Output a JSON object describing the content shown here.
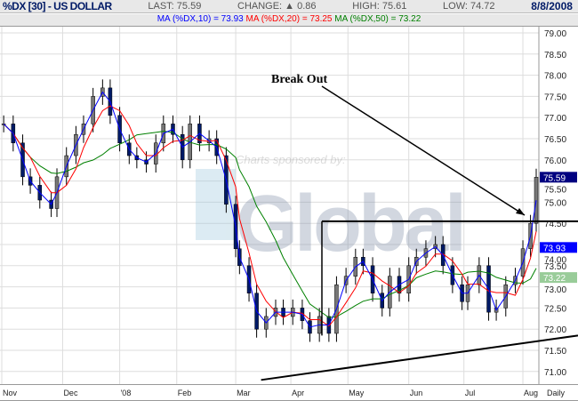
{
  "header": {
    "title": "%DX [30] - US DOLLAR",
    "last": "LAST: 75.59",
    "change": "CHANGE: ▲ 0.86",
    "high": "HIGH: 75.61",
    "low": "LOW: 74.72",
    "date": "8/8/2008",
    "ma10": "MA (%DX,10) = 73.93",
    "ma20": "MA (%DX,20) = 73.25",
    "ma50": "MA (%DX,50) = 73.22"
  },
  "colors": {
    "ma10": "#0000ff",
    "ma20": "#ff0000",
    "ma50": "#008000",
    "last_tag": "#000080",
    "ma10_tag": "#0000ff",
    "ma50_tag": "#99cc99"
  },
  "watermark": {
    "text": "Charts sponsored by:",
    "logo": "FXGlobal"
  },
  "annotation": {
    "text": "Break Out"
  },
  "chart_data": {
    "type": "line",
    "title": "%DX [30] - US DOLLAR",
    "ylim": [
      70.75,
      79.15
    ],
    "yticks": [
      "71.00",
      "71.50",
      "72.00",
      "72.50",
      "73.00",
      "73.50",
      "74.00",
      "74.50",
      "75.00",
      "75.50",
      "76.00",
      "76.50",
      "77.00",
      "77.50",
      "78.00",
      "78.50",
      "79.00"
    ],
    "xticks": [
      {
        "label": "Nov",
        "date": "2007-11-01"
      },
      {
        "label": "Dec",
        "date": "2007-12-03"
      },
      {
        "label": "'08",
        "date": "2008-01-02"
      },
      {
        "label": "Feb",
        "date": "2008-02-01"
      },
      {
        "label": "Mar",
        "date": "2008-03-03"
      },
      {
        "label": "Apr",
        "date": "2008-04-01"
      },
      {
        "label": "May",
        "date": "2008-05-01"
      },
      {
        "label": "Jun",
        "date": "2008-06-02"
      },
      {
        "label": "Jul",
        "date": "2008-07-01"
      },
      {
        "label": "Aug",
        "date": "2008-08-01"
      }
    ],
    "period_label": "Daily",
    "grid": true,
    "price_tags": [
      "75.59",
      "73.93",
      "73.22"
    ],
    "series": [
      {
        "x": [
          "2007-11-02",
          "2007-11-07",
          "2007-11-12",
          "2007-11-16",
          "2007-11-21",
          "2007-11-27",
          "2007-11-30",
          "2007-12-05",
          "2007-12-10",
          "2007-12-14",
          "2007-12-19",
          "2007-12-24",
          "2007-12-28",
          "2008-01-02",
          "2008-01-07",
          "2008-01-11",
          "2008-01-16",
          "2008-01-21",
          "2008-01-25",
          "2008-01-30",
          "2008-02-04",
          "2008-02-08",
          "2008-02-13",
          "2008-02-18",
          "2008-02-22",
          "2008-02-27",
          "2008-03-03",
          "2008-03-05",
          "2008-03-10",
          "2008-03-14",
          "2008-03-19",
          "2008-03-24",
          "2008-03-28",
          "2008-04-02",
          "2008-04-07",
          "2008-04-11",
          "2008-04-16",
          "2008-04-21",
          "2008-04-25",
          "2008-04-30",
          "2008-05-05",
          "2008-05-09",
          "2008-05-14",
          "2008-05-19",
          "2008-05-23",
          "2008-05-28",
          "2008-06-02",
          "2008-06-06",
          "2008-06-11",
          "2008-06-16",
          "2008-06-20",
          "2008-06-25",
          "2008-06-30",
          "2008-07-03",
          "2008-07-09",
          "2008-07-14",
          "2008-07-18",
          "2008-07-23",
          "2008-07-28",
          "2008-08-01",
          "2008-08-05",
          "2008-08-08"
        ],
        "y": [
          76.85,
          76.4,
          75.6,
          75.4,
          75.05,
          74.85,
          75.6,
          76.1,
          76.6,
          76.85,
          77.5,
          77.7,
          77.05,
          76.4,
          76.1,
          76.0,
          75.9,
          76.4,
          76.85,
          76.6,
          76.0,
          76.85,
          76.4,
          76.5,
          76.1,
          74.95,
          73.9,
          73.5,
          72.85,
          72.0,
          72.3,
          72.5,
          72.3,
          72.5,
          72.2,
          71.9,
          72.3,
          71.9,
          73.05,
          73.25,
          73.7,
          73.5,
          72.85,
          72.5,
          73.25,
          72.85,
          73.5,
          73.7,
          73.9,
          74.0,
          73.5,
          73.05,
          72.65,
          73.05,
          73.5,
          72.4,
          72.5,
          73.05,
          73.25,
          73.9,
          74.5,
          75.59
        ]
      }
    ],
    "trendlines": [
      {
        "name": "resistance",
        "value": 74.55
      },
      {
        "name": "support",
        "from": [
          "2008-03-14",
          70.8
        ],
        "to": [
          "2008-08-08",
          71.85
        ]
      }
    ]
  }
}
